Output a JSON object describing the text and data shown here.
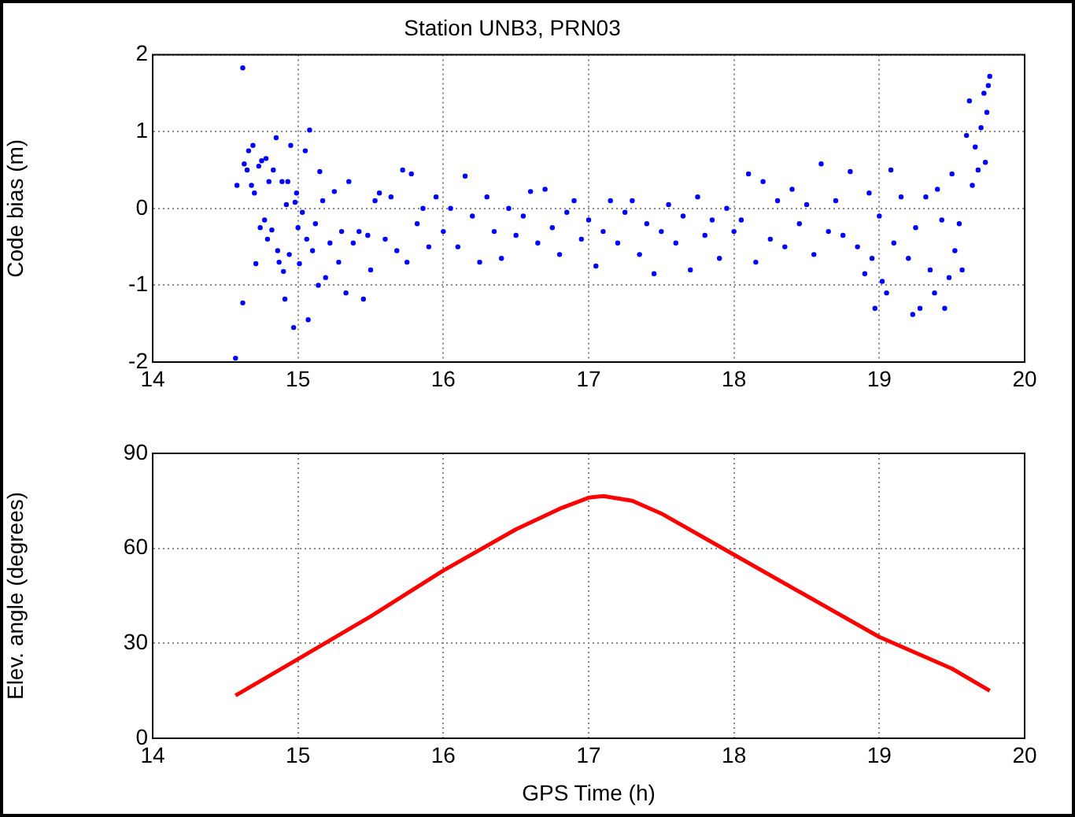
{
  "chart_data": [
    {
      "type": "scatter",
      "title": "Station UNB3, PRN03",
      "ylabel": "Code bias (m)",
      "marker": "circle",
      "grid": true,
      "legend": false,
      "xlim": [
        14,
        20
      ],
      "xticks": [
        14,
        15,
        16,
        17,
        18,
        19,
        20
      ],
      "ylim": [
        -2,
        2
      ],
      "yticks": [
        -2,
        -1,
        0,
        1,
        2
      ],
      "series": [
        {
          "color": "#0000ff",
          "x": [
            14.57,
            14.58,
            14.62,
            14.62,
            14.63,
            14.65,
            14.66,
            14.68,
            14.69,
            14.7,
            14.71,
            14.73,
            14.74,
            14.75,
            14.77,
            14.78,
            14.79,
            14.8,
            14.82,
            14.83,
            14.85,
            14.86,
            14.87,
            14.89,
            14.9,
            14.91,
            14.92,
            14.93,
            14.94,
            14.95,
            14.97,
            14.98,
            14.99,
            15.0,
            15.01,
            15.03,
            15.05,
            15.06,
            15.07,
            15.08,
            15.1,
            15.12,
            15.14,
            15.15,
            15.17,
            15.19,
            15.22,
            15.25,
            15.28,
            15.3,
            15.33,
            15.35,
            15.38,
            15.42,
            15.45,
            15.48,
            15.5,
            15.53,
            15.56,
            15.6,
            15.64,
            15.68,
            15.72,
            15.75,
            15.78,
            15.82,
            15.86,
            15.9,
            15.95,
            16.0,
            16.05,
            16.1,
            16.15,
            16.2,
            16.25,
            16.3,
            16.35,
            16.4,
            16.45,
            16.5,
            16.55,
            16.6,
            16.65,
            16.7,
            16.75,
            16.8,
            16.85,
            16.9,
            16.95,
            17.0,
            17.05,
            17.1,
            17.15,
            17.2,
            17.25,
            17.3,
            17.35,
            17.4,
            17.45,
            17.5,
            17.55,
            17.6,
            17.65,
            17.7,
            17.75,
            17.8,
            17.85,
            17.9,
            17.95,
            18.0,
            18.05,
            18.1,
            18.15,
            18.2,
            18.25,
            18.3,
            18.35,
            18.4,
            18.45,
            18.5,
            18.55,
            18.6,
            18.65,
            18.7,
            18.75,
            18.8,
            18.85,
            18.9,
            18.93,
            18.95,
            18.97,
            19.0,
            19.02,
            19.05,
            19.08,
            19.1,
            19.15,
            19.2,
            19.23,
            19.25,
            19.28,
            19.32,
            19.35,
            19.38,
            19.4,
            19.43,
            19.45,
            19.48,
            19.5,
            19.52,
            19.55,
            19.57,
            19.6,
            19.62,
            19.64,
            19.66,
            19.68,
            19.7,
            19.72,
            19.73,
            19.74,
            19.75,
            19.76
          ],
          "values": [
            -1.95,
            0.3,
            1.83,
            -1.23,
            0.58,
            0.5,
            0.75,
            0.3,
            0.82,
            0.2,
            -0.72,
            0.55,
            -0.25,
            0.62,
            -0.15,
            0.65,
            -0.4,
            0.35,
            -0.28,
            0.5,
            0.92,
            -0.55,
            -0.7,
            0.35,
            -0.82,
            -1.18,
            0.05,
            0.35,
            -0.6,
            0.82,
            -1.55,
            0.08,
            0.2,
            -0.25,
            -0.72,
            -0.05,
            0.75,
            -0.4,
            -1.45,
            1.02,
            -0.55,
            -0.2,
            -1.0,
            0.48,
            0.1,
            -0.9,
            -0.45,
            0.22,
            -0.7,
            -0.3,
            -1.1,
            0.35,
            -0.45,
            -0.3,
            -1.18,
            -0.35,
            -0.8,
            0.1,
            0.2,
            -0.4,
            0.15,
            -0.55,
            0.5,
            -0.7,
            0.45,
            -0.2,
            0.0,
            -0.5,
            0.15,
            -0.3,
            0.0,
            -0.5,
            0.42,
            -0.1,
            -0.7,
            0.15,
            -0.3,
            -0.65,
            0.0,
            -0.35,
            -0.1,
            0.22,
            -0.45,
            0.25,
            -0.25,
            -0.6,
            -0.05,
            0.1,
            -0.4,
            -0.15,
            -0.75,
            -0.3,
            0.1,
            -0.45,
            -0.05,
            0.1,
            -0.6,
            -0.2,
            -0.85,
            -0.3,
            0.05,
            -0.45,
            -0.1,
            -0.8,
            0.15,
            -0.35,
            -0.15,
            -0.65,
            0.0,
            -0.3,
            -0.15,
            0.45,
            -0.7,
            0.35,
            -0.4,
            0.1,
            -0.5,
            0.25,
            -0.2,
            0.05,
            -0.6,
            0.58,
            -0.3,
            0.1,
            -0.35,
            0.48,
            -0.5,
            -0.85,
            0.2,
            -0.65,
            -1.3,
            -0.1,
            -0.95,
            -1.1,
            0.5,
            -0.45,
            0.15,
            -0.65,
            -1.38,
            -0.25,
            -1.3,
            0.15,
            -0.8,
            -1.1,
            0.25,
            -0.15,
            -1.3,
            -0.9,
            0.45,
            -0.55,
            -0.2,
            -0.8,
            0.95,
            1.4,
            0.3,
            0.8,
            0.5,
            1.05,
            1.5,
            0.6,
            1.25,
            1.6,
            1.72
          ]
        }
      ]
    },
    {
      "type": "line",
      "xlabel": "GPS Time (h)",
      "ylabel": "Elev. angle (degrees)",
      "marker": "none",
      "line_style": "solid",
      "grid": true,
      "legend": false,
      "xlim": [
        14,
        20
      ],
      "xticks": [
        14,
        15,
        16,
        17,
        18,
        19,
        20
      ],
      "ylim": [
        0,
        90
      ],
      "yticks": [
        0,
        30,
        60,
        90
      ],
      "series": [
        {
          "color": "#ff0000",
          "x": [
            14.57,
            15,
            15.5,
            16,
            16.5,
            16.8,
            17,
            17.1,
            17.3,
            17.5,
            18,
            18.5,
            19,
            19.5,
            19.76
          ],
          "values": [
            13.5,
            25,
            38.5,
            53,
            66,
            72.5,
            76,
            76.5,
            75,
            71,
            58,
            45,
            32,
            22,
            15
          ]
        }
      ]
    }
  ]
}
